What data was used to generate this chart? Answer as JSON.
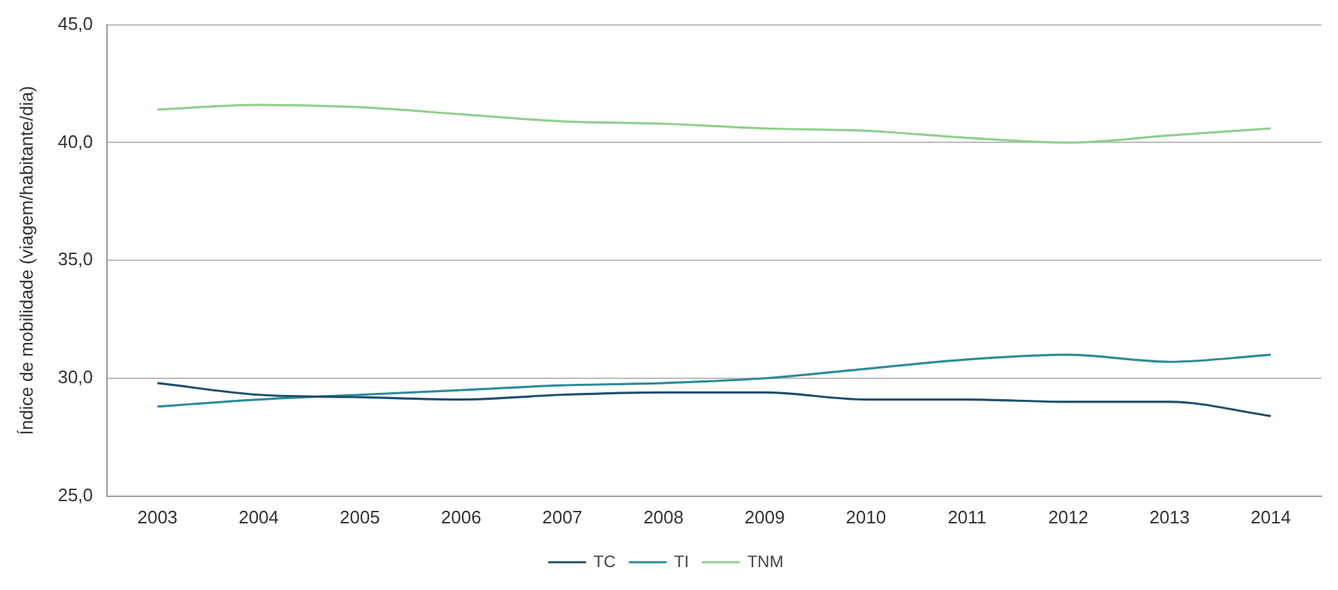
{
  "chart_data": {
    "type": "line",
    "ylabel": "Índice de mobilidade (viagem/habitante/dia)",
    "categories": [
      "2003",
      "2004",
      "2005",
      "2006",
      "2007",
      "2008",
      "2009",
      "2010",
      "2011",
      "2012",
      "2013",
      "2014"
    ],
    "series": [
      {
        "name": "TC",
        "color": "#1d4f6e",
        "values": [
          29.8,
          29.3,
          29.2,
          29.1,
          29.3,
          29.4,
          29.4,
          29.1,
          29.1,
          29.0,
          29.0,
          28.4
        ]
      },
      {
        "name": "TI",
        "color": "#2b8c98",
        "values": [
          28.8,
          29.1,
          29.3,
          29.5,
          29.7,
          29.8,
          30.0,
          30.4,
          30.8,
          31.0,
          30.7,
          31.0
        ]
      },
      {
        "name": "TNM",
        "color": "#8fd08a",
        "values": [
          41.4,
          41.6,
          41.5,
          41.2,
          40.9,
          40.8,
          40.6,
          40.5,
          40.2,
          40.0,
          40.3,
          40.6
        ]
      }
    ],
    "ylim": [
      25,
      45
    ],
    "yticks": [
      {
        "value": 25,
        "label": "25,0"
      },
      {
        "value": 30,
        "label": "30,0"
      },
      {
        "value": 35,
        "label": "35,0"
      },
      {
        "value": 40,
        "label": "40,0"
      },
      {
        "value": 45,
        "label": "45,0"
      }
    ],
    "grid": "y",
    "legend": "bottom",
    "marker": "none",
    "line_style": "solid"
  }
}
